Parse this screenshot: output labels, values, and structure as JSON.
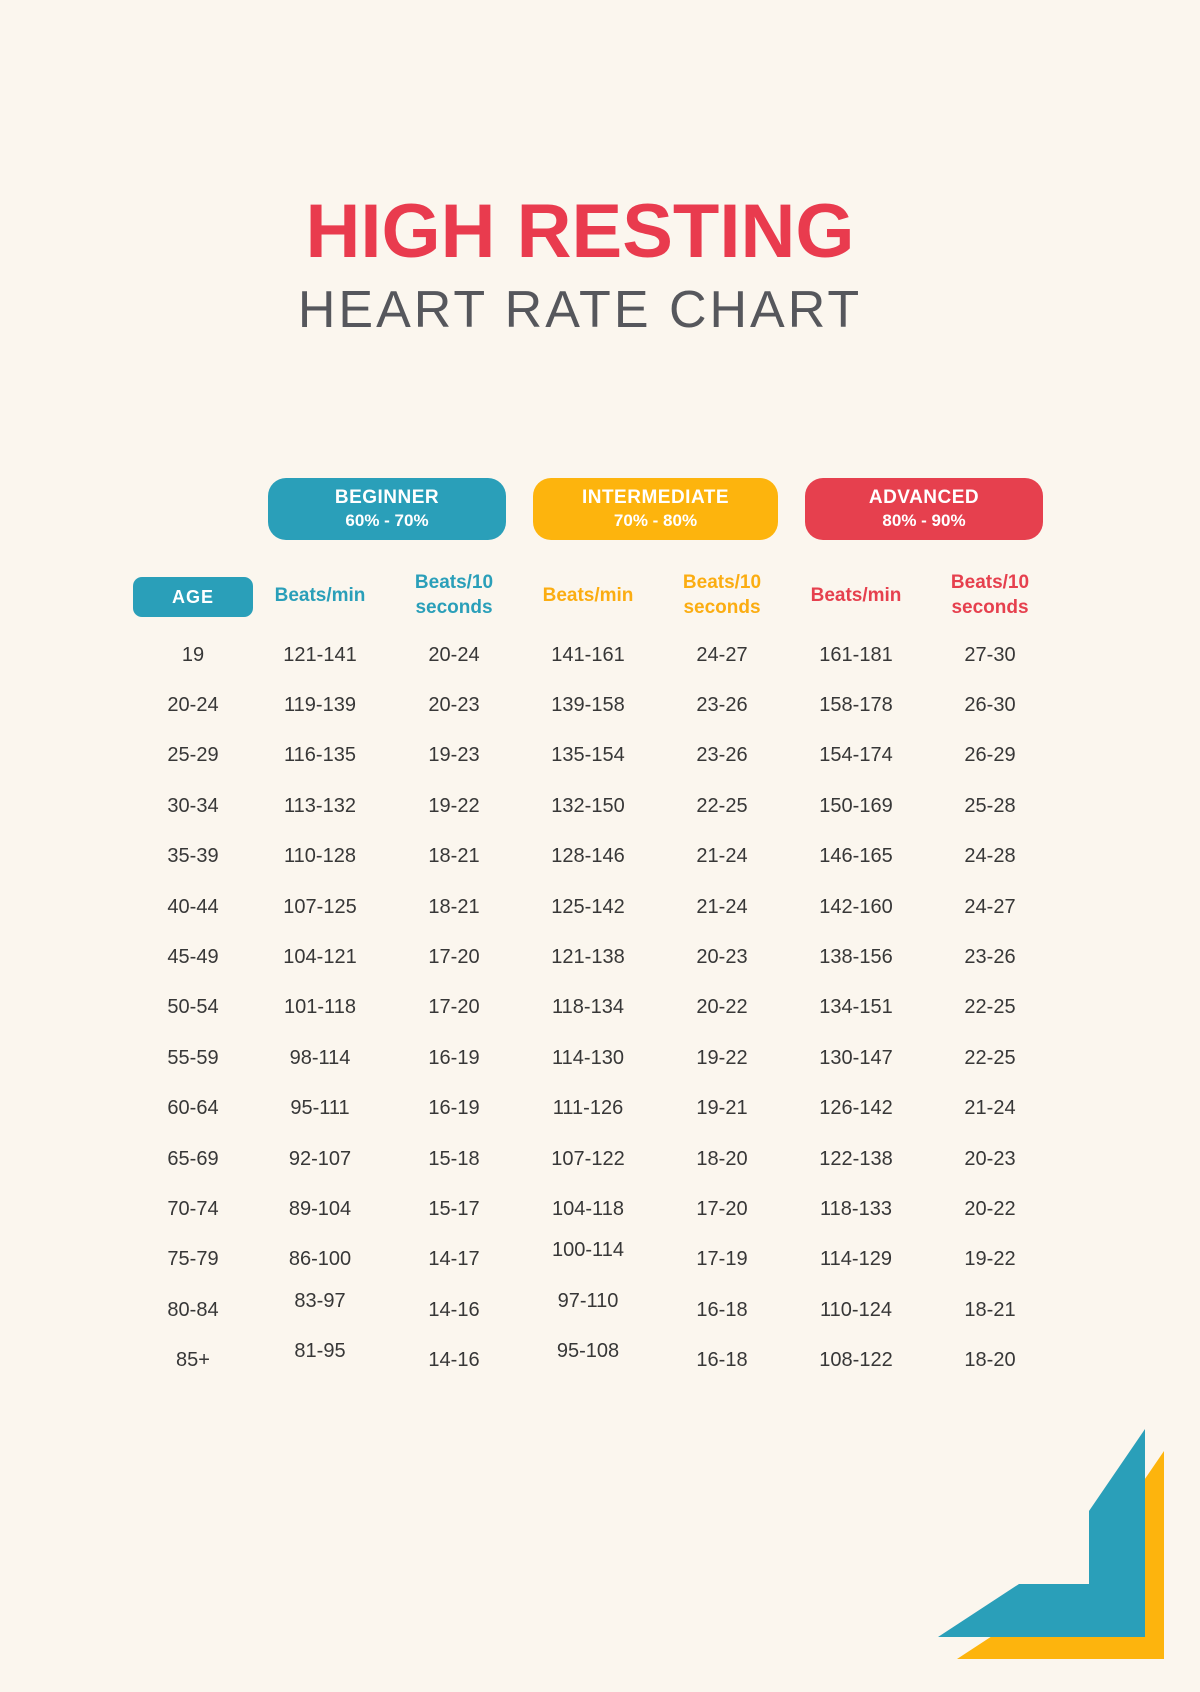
{
  "page": {
    "background": "#fbf6ee"
  },
  "title": {
    "line1": "HIGH RESTING",
    "line2": "HEART RATE CHART"
  },
  "colors": {
    "teal": "#2a9fb9",
    "yellow": "#fdb40d",
    "red": "#e6404e",
    "title_red": "#e93b4e",
    "subtitle_gray": "#56575c",
    "cell_text": "#373737",
    "background": "#fbf6ee"
  },
  "levels": [
    {
      "name": "BEGINNER",
      "range": "60% - 70%",
      "color": "#2a9fb9"
    },
    {
      "name": "INTERMEDIATE",
      "range": "70% - 80%",
      "color": "#fdb40d"
    },
    {
      "name": "ADVANCED",
      "range": "80% - 90%",
      "color": "#e6404e"
    }
  ],
  "chart_data": {
    "type": "table",
    "title": "HIGH RESTING HEART RATE CHART",
    "column_groups": [
      {
        "label": "BEGINNER",
        "range": "60% - 70%"
      },
      {
        "label": "INTERMEDIATE",
        "range": "70% - 80%"
      },
      {
        "label": "ADVANCED",
        "range": "80% - 90%"
      }
    ],
    "columns": [
      "AGE",
      "Beats/min",
      "Beats/10 seconds",
      "Beats/min",
      "Beats/10 seconds",
      "Beats/min",
      "Beats/10 seconds"
    ],
    "rows": [
      [
        "19",
        "121-141",
        "20-24",
        "141-161",
        "24-27",
        "161-181",
        "27-30"
      ],
      [
        "20-24",
        "119-139",
        "20-23",
        "139-158",
        "23-26",
        "158-178",
        "26-30"
      ],
      [
        "25-29",
        "116-135",
        "19-23",
        "135-154",
        "23-26",
        "154-174",
        "26-29"
      ],
      [
        "30-34",
        "113-132",
        "19-22",
        "132-150",
        "22-25",
        "150-169",
        "25-28"
      ],
      [
        "35-39",
        "110-128",
        "18-21",
        "128-146",
        "21-24",
        "146-165",
        "24-28"
      ],
      [
        "40-44",
        "107-125",
        "18-21",
        "125-142",
        "21-24",
        "142-160",
        "24-27"
      ],
      [
        "45-49",
        "104-121",
        "17-20",
        "121-138",
        "20-23",
        "138-156",
        "23-26"
      ],
      [
        "50-54",
        "101-118",
        "17-20",
        "118-134",
        "20-22",
        "134-151",
        "22-25"
      ],
      [
        "55-59",
        "98-114",
        "16-19",
        "114-130",
        "19-22",
        "130-147",
        "22-25"
      ],
      [
        "60-64",
        "95-111",
        "16-19",
        "111-126",
        "19-21",
        "126-142",
        "21-24"
      ],
      [
        "65-69",
        "92-107",
        "15-18",
        "107-122",
        "18-20",
        "122-138",
        "20-23"
      ],
      [
        "70-74",
        "89-104",
        "15-17",
        "104-118",
        "17-20",
        "118-133",
        "20-22"
      ],
      [
        "75-79",
        "86-100",
        "14-17",
        "100-114",
        "17-19",
        "114-129",
        "19-22"
      ],
      [
        "80-84",
        "83-97",
        "14-16",
        "97-110",
        "16-18",
        "110-124",
        "18-21"
      ],
      [
        "85+",
        "81-95",
        "14-16",
        "95-108",
        "16-18",
        "108-122",
        "18-20"
      ]
    ]
  }
}
